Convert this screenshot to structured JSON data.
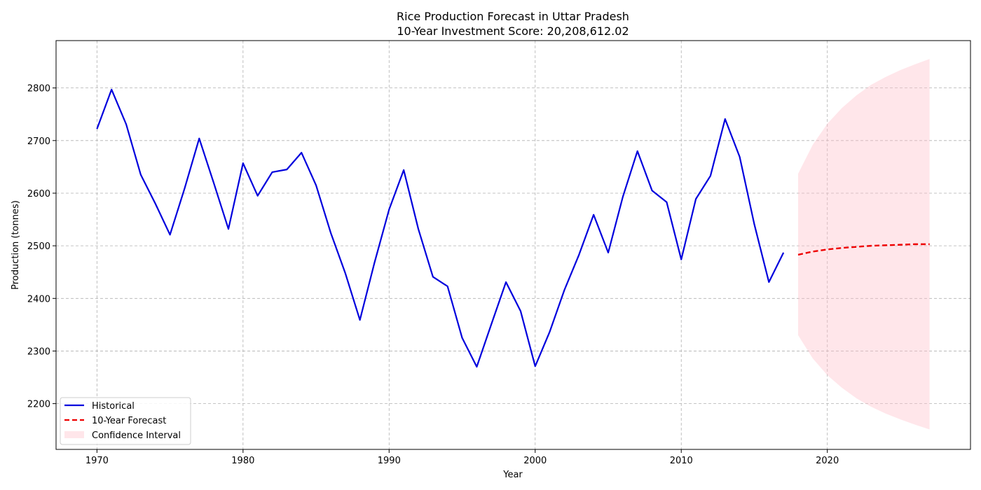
{
  "chart_data": {
    "type": "line",
    "title": "Rice Production Forecast in Uttar Pradesh",
    "subtitle": "10-Year Investment Score: 20,208,612.02",
    "xlabel": "Year",
    "ylabel": "Production (tonnes)",
    "xlim": [
      1967.2,
      2029.8
    ],
    "ylim": [
      2113,
      2890
    ],
    "xticks": [
      1970,
      1980,
      1990,
      2000,
      2010,
      2020
    ],
    "yticks": [
      2200,
      2300,
      2400,
      2500,
      2600,
      2700,
      2800
    ],
    "grid": true,
    "legend_position": "bottom-left",
    "colors": {
      "historical": "#0000dd",
      "forecast": "#ee0000",
      "confidence": "#ffc0cb"
    },
    "series": [
      {
        "name": "Historical",
        "style": "solid",
        "x": [
          1970,
          1971,
          1972,
          1973,
          1974,
          1975,
          1976,
          1977,
          1978,
          1979,
          1980,
          1981,
          1982,
          1983,
          1984,
          1985,
          1986,
          1987,
          1988,
          1989,
          1990,
          1991,
          1992,
          1993,
          1994,
          1995,
          1996,
          1997,
          1998,
          1999,
          2000,
          2001,
          2002,
          2003,
          2004,
          2005,
          2006,
          2007,
          2008,
          2009,
          2010,
          2011,
          2012,
          2013,
          2014,
          2015,
          2016,
          2017
        ],
        "y": [
          2722,
          2797,
          2731,
          2635,
          2580,
          2521,
          2609,
          2704,
          2619,
          2532,
          2657,
          2595,
          2640,
          2645,
          2677,
          2615,
          2525,
          2448,
          2359,
          2468,
          2569,
          2644,
          2532,
          2441,
          2423,
          2325,
          2270,
          2351,
          2431,
          2376,
          2271,
          2337,
          2416,
          2483,
          2559,
          2487,
          2593,
          2680,
          2605,
          2583,
          2474,
          2589,
          2633,
          2741,
          2669,
          2541,
          2431,
          2487
        ]
      },
      {
        "name": "10-Year Forecast",
        "style": "dashed",
        "x": [
          2018,
          2019,
          2020,
          2021,
          2022,
          2023,
          2024,
          2025,
          2026,
          2027
        ],
        "y": [
          2483,
          2489,
          2493,
          2496,
          2498,
          2500,
          2501,
          2502,
          2503,
          2503
        ]
      }
    ],
    "confidence_interval": {
      "name": "Confidence Interval",
      "x": [
        2018,
        2019,
        2020,
        2021,
        2022,
        2023,
        2024,
        2025,
        2026,
        2027
      ],
      "lower": [
        2330,
        2286,
        2254,
        2230,
        2210,
        2194,
        2181,
        2170,
        2160,
        2151
      ],
      "upper": [
        2637,
        2692,
        2732,
        2762,
        2786,
        2806,
        2821,
        2834,
        2845,
        2855
      ]
    }
  }
}
